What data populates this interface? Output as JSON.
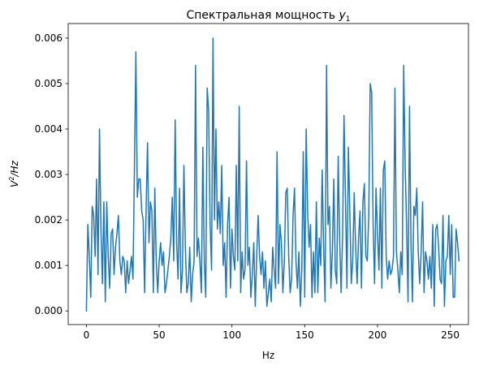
{
  "chart_data": {
    "type": "line",
    "title_main": "Спектральная мощность ",
    "title_var": "y",
    "title_sub": "1",
    "xlabel": "Hz",
    "ylabel_base": "V",
    "ylabel_exp": "2",
    "ylabel_tail": "/Hz",
    "xlim": [
      -12.5,
      262.5
    ],
    "ylim": [
      -0.0003,
      0.00632
    ],
    "xticks": [
      0,
      50,
      100,
      150,
      200,
      250
    ],
    "yticks": [
      0.0,
      0.001,
      0.002,
      0.003,
      0.004,
      0.005,
      0.006
    ],
    "ytick_labels": [
      "0.000",
      "0.001",
      "0.002",
      "0.003",
      "0.004",
      "0.005",
      "0.006"
    ],
    "grid": false,
    "line_color": "#1f77b4",
    "series": [
      {
        "x_start": 0,
        "x_step": 1,
        "values": [
          0.0,
          0.0019,
          0.0012,
          0.0003,
          0.0023,
          0.0021,
          0.0012,
          0.0029,
          0.0008,
          0.004,
          0.0018,
          0.0006,
          0.0024,
          0.0002,
          0.0024,
          0.0012,
          0.0005,
          0.0017,
          0.0018,
          0.0008,
          0.0014,
          0.0017,
          0.0021,
          0.0011,
          0.0008,
          0.0012,
          0.0011,
          0.0004,
          0.0011,
          0.0006,
          0.0009,
          0.0012,
          0.0007,
          0.0031,
          0.0057,
          0.0025,
          0.0029,
          0.0029,
          0.0022,
          0.002,
          0.0004,
          0.0022,
          0.0037,
          0.0015,
          0.0024,
          0.0022,
          0.0004,
          0.0027,
          0.0011,
          0.0004,
          0.0011,
          0.0015,
          0.001,
          0.0013,
          0.0004,
          0.0006,
          0.0009,
          0.0012,
          0.0016,
          0.0025,
          0.0011,
          0.0042,
          0.0015,
          0.0007,
          0.0027,
          0.0004,
          0.0009,
          0.0032,
          0.0014,
          0.0004,
          0.0006,
          0.0014,
          0.0002,
          0.0008,
          0.0011,
          0.0054,
          0.0012,
          0.0016,
          0.0011,
          0.0004,
          0.0036,
          0.0011,
          0.0003,
          0.0049,
          0.0044,
          0.0019,
          0.0009,
          0.006,
          0.002,
          0.004,
          0.0018,
          0.0024,
          0.0017,
          0.0032,
          0.001,
          0.0015,
          0.0003,
          0.0019,
          0.0025,
          0.0005,
          0.0018,
          0.0012,
          0.0009,
          0.0032,
          0.0011,
          0.0045,
          0.0004,
          0.0013,
          0.0007,
          0.0009,
          0.0033,
          0.001,
          0.0014,
          0.0003,
          0.0008,
          0.0015,
          0.0001,
          0.0012,
          0.0021,
          0.0012,
          0.0008,
          0.0013,
          0.0005,
          0.0011,
          0.0001,
          0.0004,
          0.0007,
          0.0002,
          0.0014,
          0.0009,
          0.0005,
          0.0035,
          0.0006,
          0.0019,
          0.0015,
          0.0004,
          0.0011,
          0.0026,
          0.0027,
          0.0012,
          0.0004,
          0.0007,
          0.0021,
          0.0027,
          0.0011,
          0.0005,
          0.0013,
          0.0001,
          0.0009,
          0.0035,
          0.0003,
          0.004,
          0.0022,
          0.0014,
          0.0019,
          0.0003,
          0.0013,
          0.0004,
          0.0024,
          0.0004,
          0.0016,
          0.001,
          0.0031,
          0.0014,
          0.0002,
          0.0054,
          0.0019,
          0.0023,
          0.0005,
          0.0013,
          0.0029,
          0.0009,
          0.0006,
          0.0034,
          0.0016,
          0.0004,
          0.0016,
          0.0043,
          0.0025,
          0.0005,
          0.0036,
          0.0022,
          0.0006,
          0.0011,
          0.0026,
          0.0014,
          0.0006,
          0.0016,
          0.0022,
          0.0005,
          0.0024,
          0.0028,
          0.0012,
          0.0011,
          0.0021,
          0.005,
          0.0048,
          0.0019,
          0.0006,
          0.0027,
          0.0017,
          0.0009,
          0.0027,
          0.0005,
          0.0031,
          0.0033,
          0.0012,
          0.0007,
          0.0011,
          0.0008,
          0.0009,
          0.0012,
          0.0049,
          0.0013,
          0.0009,
          0.0004,
          0.0013,
          0.0008,
          0.0054,
          0.0032,
          0.0019,
          0.0002,
          0.0045,
          0.0015,
          0.0002,
          0.0023,
          0.0021,
          0.0027,
          0.0013,
          0.0006,
          0.0013,
          0.0024,
          0.0004,
          0.0013,
          0.0011,
          0.0007,
          0.0012,
          0.0005,
          0.0019,
          0.0001,
          0.0018,
          0.0019,
          0.0014,
          0.0007,
          0.0006,
          0.0021,
          0.0001,
          0.0011,
          0.0012,
          0.0021,
          0.0008,
          0.0019,
          0.0003,
          0.0003,
          0.0018,
          0.0015,
          0.0011
        ]
      }
    ]
  }
}
